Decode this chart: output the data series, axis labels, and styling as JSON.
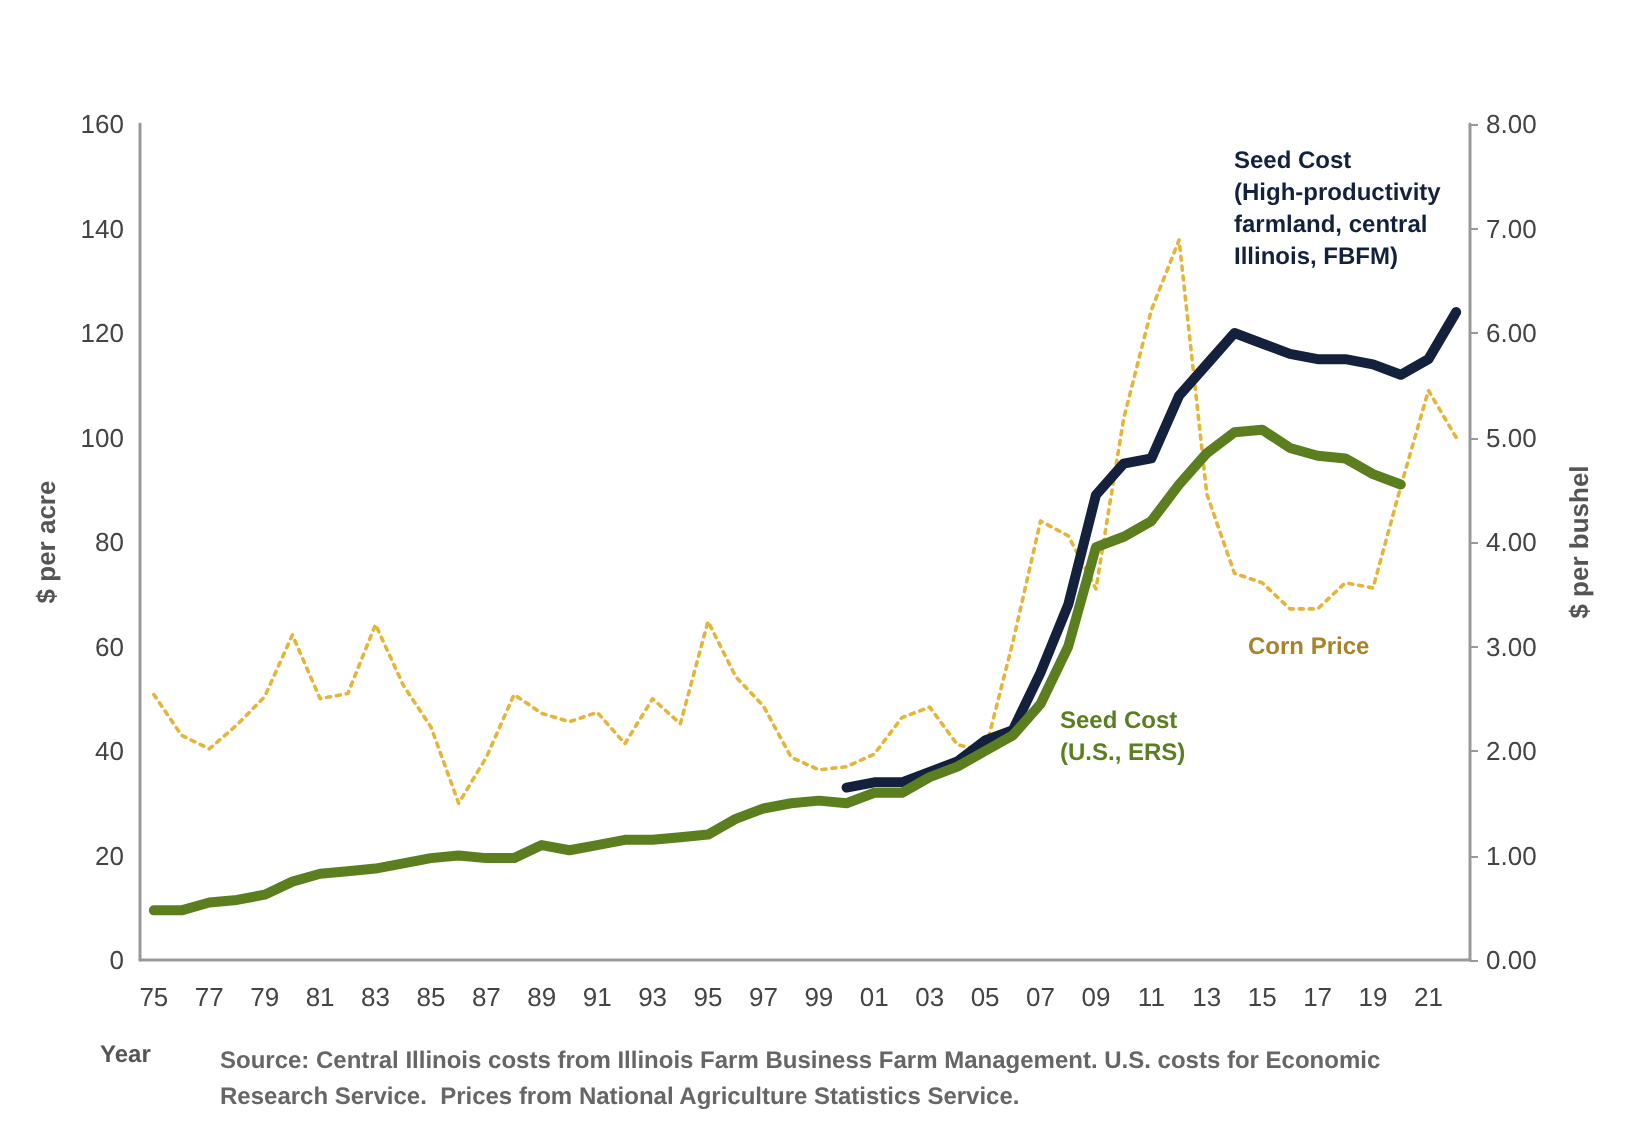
{
  "chart_data": {
    "type": "line",
    "xlabel": "Year",
    "ylabel": "$ per acre",
    "y2label": "$ per bushel",
    "categories": [
      "75",
      null,
      "77",
      null,
      "79",
      null,
      "81",
      null,
      "83",
      null,
      "85",
      null,
      "87",
      null,
      "89",
      null,
      "91",
      null,
      "93",
      null,
      "95",
      null,
      "97",
      null,
      "99",
      null,
      "01",
      null,
      "03",
      null,
      "05",
      null,
      "07",
      null,
      "09",
      null,
      "11",
      null,
      "13",
      null,
      "15",
      null,
      "17",
      null,
      "19",
      null,
      "21",
      null
    ],
    "series": [
      {
        "name": "Seed Cost (U.S., ERS)",
        "color": "#5b7f1f",
        "line_style": "solid",
        "values": [
          9.5,
          9.5,
          11,
          11.5,
          12.5,
          15,
          16.5,
          17,
          17.5,
          18.5,
          19.5,
          20,
          19.5,
          19.5,
          22,
          21,
          22,
          23,
          23,
          23.5,
          24,
          27,
          29,
          30,
          30.5,
          30,
          32,
          32,
          35,
          37,
          40,
          43,
          49,
          60,
          79,
          81,
          84,
          91,
          97,
          101,
          101.5,
          98,
          96.5,
          96,
          93,
          91,
          null,
          null
        ]
      },
      {
        "name": "Seed Cost (High-productivity farmland, central Illinois, FBFM)",
        "color": "#14213d",
        "line_style": "solid",
        "values": [
          null,
          null,
          null,
          null,
          null,
          null,
          null,
          null,
          null,
          null,
          null,
          null,
          null,
          null,
          null,
          null,
          null,
          null,
          null,
          null,
          null,
          null,
          null,
          null,
          null,
          33,
          34,
          34,
          36,
          38,
          42,
          44,
          55,
          68,
          89,
          95,
          96,
          108,
          114,
          120,
          118,
          116,
          115,
          115,
          114,
          112,
          115,
          124
        ]
      },
      {
        "name": "Corn Price",
        "color": "#e5b53a",
        "line_style": "dotted",
        "axis": "y2",
        "values": [
          2.54,
          2.15,
          2.02,
          2.25,
          2.52,
          3.11,
          2.5,
          2.55,
          3.21,
          2.63,
          2.23,
          1.5,
          1.94,
          2.54,
          2.36,
          2.28,
          2.37,
          2.07,
          2.5,
          2.26,
          3.24,
          2.71,
          2.43,
          1.94,
          1.82,
          1.85,
          1.97,
          2.32,
          2.42,
          2.06,
          2.0,
          3.04,
          4.2,
          4.06,
          3.55,
          5.18,
          6.22,
          6.89,
          4.46,
          3.7,
          3.61,
          3.36,
          3.36,
          3.61,
          3.56,
          4.53,
          5.45,
          5.0
        ]
      }
    ],
    "ylim": [
      0,
      160
    ],
    "yticks": [
      0,
      20,
      40,
      60,
      80,
      100,
      120,
      140,
      160
    ],
    "y2lim": [
      0,
      8
    ],
    "y2ticks": [
      {
        "value": 0,
        "label": "0.00"
      },
      {
        "value": 1,
        "label": "1.00"
      },
      {
        "value": 2,
        "label": "2.00"
      },
      {
        "value": 3,
        "label": "3.00"
      },
      {
        "value": 4,
        "label": "4.00"
      },
      {
        "value": 5,
        "label": "5.00"
      },
      {
        "value": 6,
        "label": "6.00"
      },
      {
        "value": 7,
        "label": "7.00"
      },
      {
        "value": 8,
        "label": "8.00"
      }
    ],
    "grid": false,
    "legend": false,
    "marker": "none",
    "annotations": [
      "Source: Central Illinois costs from Illinois Farm Business Farm Management. U.S. costs for Economic Research Service.  Prices from National Agriculture Statistics Service."
    ]
  }
}
